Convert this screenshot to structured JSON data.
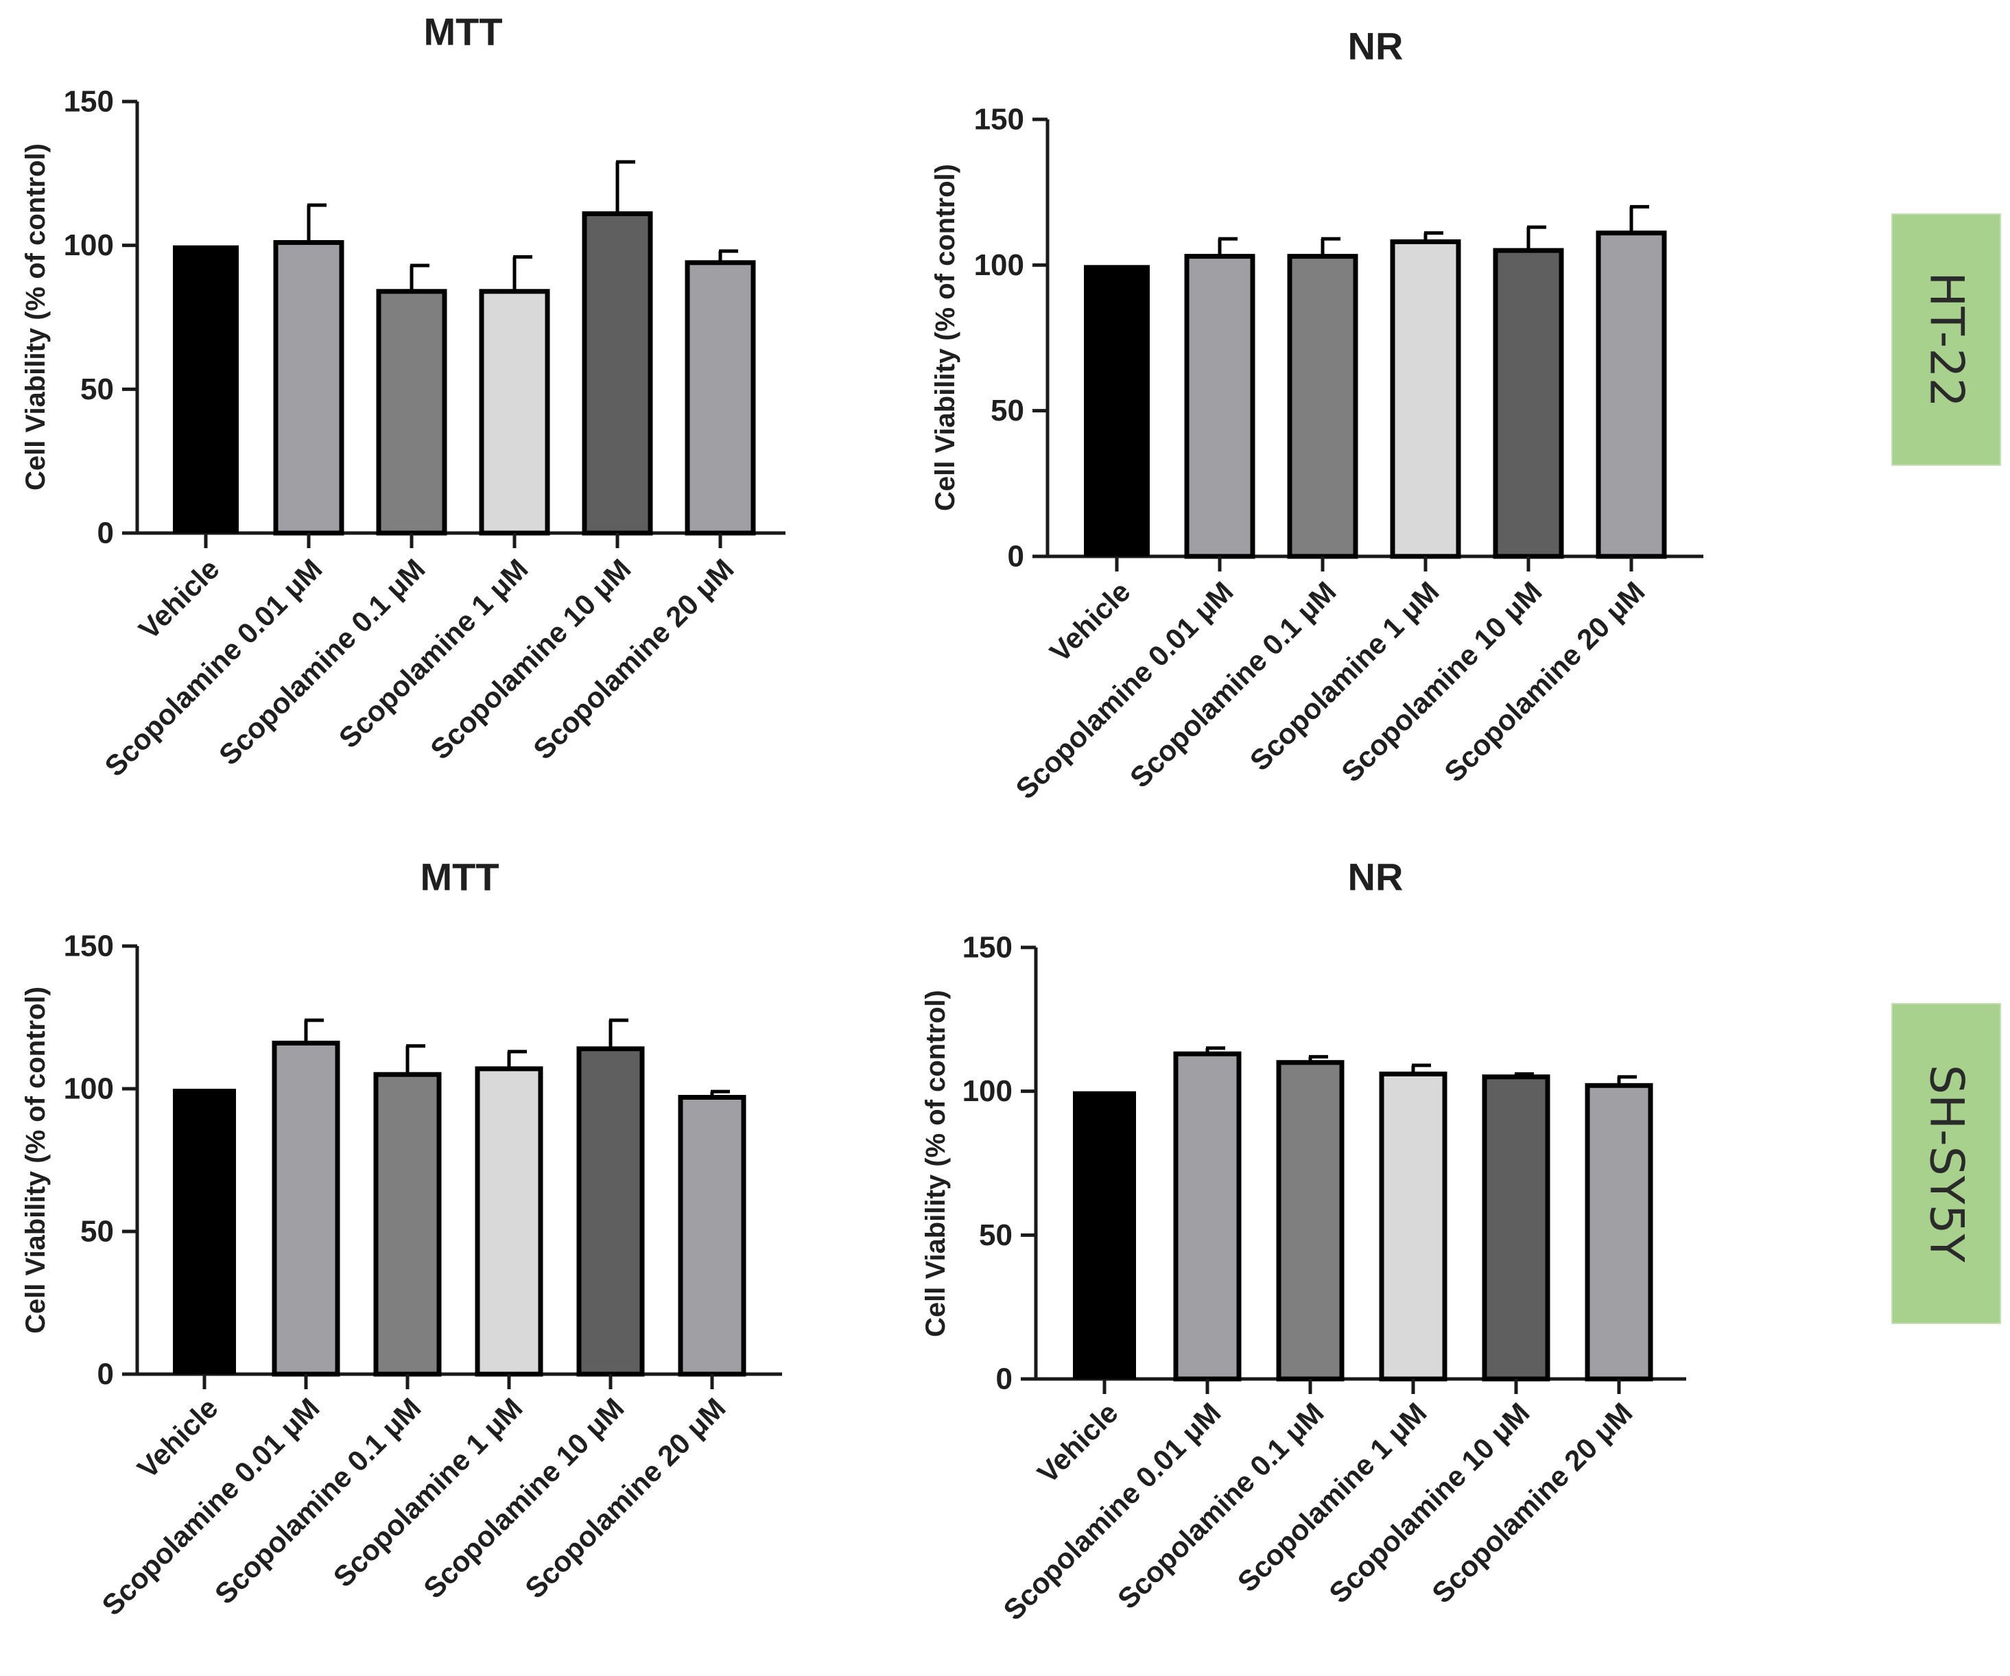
{
  "cell_lines": [
    {
      "label": "HT-22",
      "color": "#a9d18e"
    },
    {
      "label": "SH-SY5Y",
      "color": "#a9d18e"
    }
  ],
  "chart_data": [
    {
      "type": "bar",
      "title": "MTT",
      "cell_line": "HT-22",
      "ylabel": "Cell Viability (%  of control)",
      "xlabel": "",
      "ylim": [
        0,
        150
      ],
      "yticks": [
        0,
        50,
        100,
        150
      ],
      "categories": [
        "Vehicle",
        "Scopolamine 0.01 μM",
        "Scopolamine 0.1 μM",
        "Scopolamine 1 μM",
        "Scopolamine 10 μM",
        "Scopolamine 20 μM"
      ],
      "values": [
        100,
        101,
        84,
        84,
        111,
        94
      ],
      "errors": [
        0,
        13,
        9,
        12,
        18,
        4
      ],
      "colors": [
        "#000000",
        "#a0a0a4",
        "#7f7f7f",
        "#d9d9d9",
        "#5f5f5f",
        "#a0a0a4"
      ]
    },
    {
      "type": "bar",
      "title": "NR",
      "cell_line": "HT-22",
      "ylabel": "Cell Viability (%  of control)",
      "xlabel": "",
      "ylim": [
        0,
        150
      ],
      "yticks": [
        0,
        50,
        100,
        150
      ],
      "categories": [
        "Vehicle",
        "Scopolamine 0.01 μM",
        "Scopolamine 0.1 μM",
        "Scopolamine 1 μM",
        "Scopolamine 10 μM",
        "Scopolamine 20 μM"
      ],
      "values": [
        100,
        103,
        103,
        108,
        105,
        111
      ],
      "errors": [
        0,
        6,
        6,
        3,
        8,
        9
      ],
      "colors": [
        "#000000",
        "#a0a0a4",
        "#7f7f7f",
        "#d9d9d9",
        "#5f5f5f",
        "#a0a0a4"
      ]
    },
    {
      "type": "bar",
      "title": "MTT",
      "cell_line": "SH-SY5Y",
      "ylabel": "Cell Viability (%  of control)",
      "xlabel": "",
      "ylim": [
        0,
        150
      ],
      "yticks": [
        0,
        50,
        100,
        150
      ],
      "categories": [
        "Vehicle",
        "Scopolamine 0.01 μM",
        "Scopolamine 0.1 μM",
        "Scopolamine 1 μM",
        "Scopolamine 10 μM",
        "Scopolamine 20 μM"
      ],
      "values": [
        100,
        116,
        105,
        107,
        114,
        97
      ],
      "errors": [
        0,
        8,
        10,
        6,
        10,
        2
      ],
      "colors": [
        "#000000",
        "#a0a0a4",
        "#7f7f7f",
        "#d9d9d9",
        "#5f5f5f",
        "#a0a0a4"
      ]
    },
    {
      "type": "bar",
      "title": "NR",
      "cell_line": "SH-SY5Y",
      "ylabel": "Cell Viability (%  of control)",
      "xlabel": "",
      "ylim": [
        0,
        150
      ],
      "yticks": [
        0,
        50,
        100,
        150
      ],
      "categories": [
        "Vehicle",
        "Scopolamine  0.01 μM",
        "Scopolamine 0.1 μM",
        "Scopolamine 1 μM",
        "Scopolamine 10 μM",
        "Scopolamine 20 μM"
      ],
      "values": [
        100,
        113,
        110,
        106,
        105,
        102
      ],
      "errors": [
        0,
        2,
        2,
        3,
        1,
        3
      ],
      "colors": [
        "#000000",
        "#a0a0a4",
        "#7f7f7f",
        "#d9d9d9",
        "#5f5f5f",
        "#a0a0a4"
      ]
    }
  ]
}
